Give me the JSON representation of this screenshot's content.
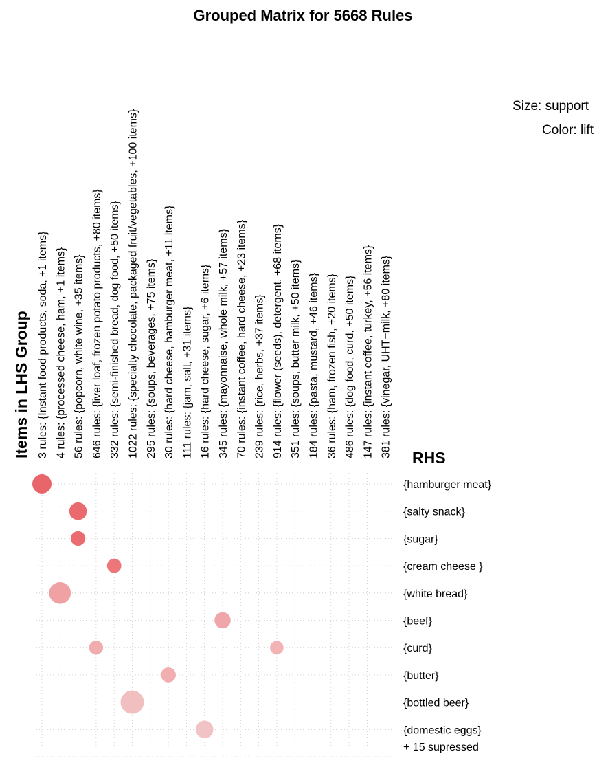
{
  "chart_data": {
    "type": "scatter",
    "title": "Grouped Matrix for 5668 Rules",
    "xlabel": "Items in LHS Group",
    "ylabel": "RHS",
    "legend": {
      "size_label": "Size: support",
      "color_label": "Color: lift",
      "placement": "top-right"
    },
    "grid": true,
    "lhs_groups": [
      "3 rules: {Instant food products, soda, +1 items}",
      "4 rules: {processed cheese, ham, +1 items}",
      "56 rules: {popcorn, white wine, +35 items}",
      "646 rules: {liver loaf, frozen potato products, +80 items}",
      "332 rules: {semi-finished bread, dog food, +50 items}",
      "1022 rules: {specialty chocolate, packaged fruit/vegetables, +100 items}",
      "295 rules: {soups, beverages, +75 items}",
      "30 rules: {hard cheese, hamburger meat, +11 items}",
      "111 rules: {jam, salt, +31 items}",
      "16 rules: {hard cheese, sugar, +6 items}",
      "345 rules: {mayonnaise, whole milk, +57 items}",
      "70 rules: {instant coffee, hard cheese, +23 items}",
      "239 rules: {rice, herbs, +37 items}",
      "914 rules: {flower (seeds), detergent, +68 items}",
      "351 rules: {soups, butter milk, +50 items}",
      "184 rules: {pasta, mustard, +46 items}",
      "36 rules: {ham, frozen fish, +20 items}",
      "486 rules: {dog food, curd, +50 items}",
      "147 rules: {instant coffee, turkey, +56 items}",
      "381 rules: {vinegar, UHT−milk, +80 items}"
    ],
    "rhs_items": [
      "{hamburger meat}",
      "{salty snack}",
      "{sugar}",
      "{cream cheese }",
      "{white bread}",
      "{beef}",
      "{curd}",
      "{butter}",
      "{bottled beer}",
      "{domestic eggs}"
    ],
    "suppressed_label": "+ 15 supressed",
    "points": [
      {
        "lhs": 0,
        "rhs": 0,
        "support": 0.55,
        "lift": 0.85,
        "color": "#e8666a"
      },
      {
        "lhs": 2,
        "rhs": 1,
        "support": 0.4,
        "lift": 0.8,
        "color": "#ea6b6f"
      },
      {
        "lhs": 2,
        "rhs": 2,
        "support": 0.2,
        "lift": 0.78,
        "color": "#ea6c70"
      },
      {
        "lhs": 4,
        "rhs": 3,
        "support": 0.18,
        "lift": 0.72,
        "color": "#ec7679"
      },
      {
        "lhs": 1,
        "rhs": 4,
        "support": 0.8,
        "lift": 0.45,
        "color": "#efa1a3"
      },
      {
        "lhs": 10,
        "rhs": 5,
        "support": 0.3,
        "lift": 0.4,
        "color": "#f0a6a8"
      },
      {
        "lhs": 3,
        "rhs": 6,
        "support": 0.17,
        "lift": 0.35,
        "color": "#f1acae"
      },
      {
        "lhs": 13,
        "rhs": 6,
        "support": 0.14,
        "lift": 0.3,
        "color": "#f2b3b5"
      },
      {
        "lhs": 7,
        "rhs": 7,
        "support": 0.22,
        "lift": 0.32,
        "color": "#f1afb1"
      },
      {
        "lhs": 5,
        "rhs": 8,
        "support": 1.0,
        "lift": 0.2,
        "color": "#f2bfc0"
      },
      {
        "lhs": 9,
        "rhs": 9,
        "support": 0.4,
        "lift": 0.15,
        "color": "#f2c3c4"
      }
    ]
  }
}
